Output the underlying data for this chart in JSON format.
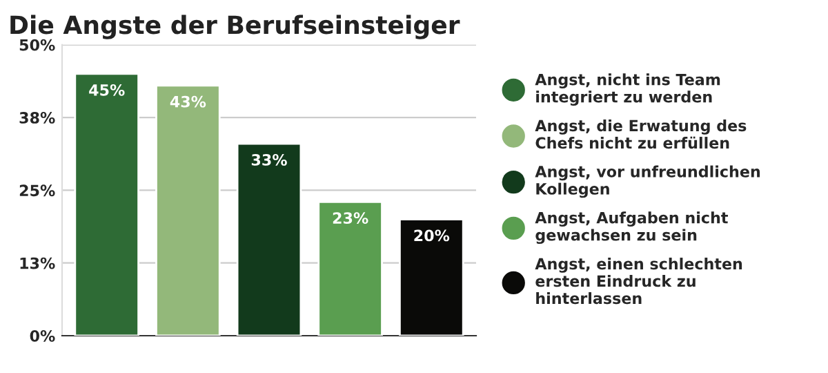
{
  "chart_data": {
    "type": "bar",
    "title": "Die Angste der Berufseinsteiger",
    "categories": [
      null,
      null,
      null,
      null,
      null
    ],
    "series": [
      {
        "name": "Angst, nicht ins Team\nintegriert zu werden",
        "color": "#2e6b35",
        "values": [
          45,
          null,
          null,
          null,
          null
        ],
        "value_labels": [
          "45%",
          null,
          null,
          null,
          null
        ]
      },
      {
        "name": "Angst, die Erwatung des\nChefs nicht zu erfüllen",
        "color": "#93b87a",
        "values": [
          null,
          43,
          null,
          null,
          null
        ],
        "value_labels": [
          null,
          "43%",
          null,
          null,
          null
        ]
      },
      {
        "name": "Angst, vor unfreundlichen\nKollegen",
        "color": "#123a1c",
        "values": [
          null,
          null,
          33,
          null,
          null
        ],
        "value_labels": [
          null,
          null,
          "33%",
          null,
          null
        ]
      },
      {
        "name": "Angst, Aufgaben nicht\ngewachsen zu sein",
        "color": "#5a9e50",
        "values": [
          null,
          null,
          null,
          23,
          null
        ],
        "value_labels": [
          null,
          null,
          null,
          "23%",
          null
        ]
      },
      {
        "name": "Angst, einen schlechten\nersten Eindruck zu\nhinterlassen",
        "color": "#0a0a08",
        "values": [
          null,
          null,
          null,
          null,
          20
        ],
        "value_labels": [
          null,
          null,
          null,
          null,
          "20%"
        ]
      }
    ],
    "ylim": [
      0,
      50
    ],
    "yticks": [
      {
        "value": 0,
        "label": "0%"
      },
      {
        "value": 12.5,
        "label": "13%"
      },
      {
        "value": 25,
        "label": "25%"
      },
      {
        "value": 37.5,
        "label": "38%"
      },
      {
        "value": 50,
        "label": "50%"
      }
    ],
    "grid": "y",
    "legend": "right",
    "marker": "circle"
  }
}
